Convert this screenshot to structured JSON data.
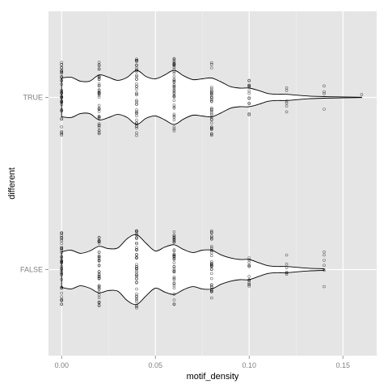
{
  "chart_data": {
    "type": "violin",
    "orientation": "horizontal",
    "xlabel": "motif_density",
    "ylabel": "different",
    "categories": [
      "TRUE",
      "FALSE"
    ],
    "x_ticks": [
      0.0,
      0.05,
      0.1,
      0.15
    ],
    "x_tick_labels": [
      "0.00",
      "0.05",
      "0.10",
      "0.15"
    ],
    "xlim": [
      -0.007,
      0.168
    ],
    "grid": true,
    "background": "#e5e5e5",
    "grid_color": "#ffffff",
    "violin_fill": "#ffffff",
    "violin_stroke": "#000000",
    "violins": [
      {
        "category": "TRUE",
        "profile": [
          [
            0.0,
            0.25
          ],
          [
            0.005,
            0.26
          ],
          [
            0.01,
            0.21
          ],
          [
            0.015,
            0.21
          ],
          [
            0.02,
            0.29
          ],
          [
            0.025,
            0.26
          ],
          [
            0.03,
            0.22
          ],
          [
            0.035,
            0.26
          ],
          [
            0.04,
            0.35
          ],
          [
            0.045,
            0.27
          ],
          [
            0.05,
            0.24
          ],
          [
            0.055,
            0.29
          ],
          [
            0.06,
            0.35
          ],
          [
            0.065,
            0.28
          ],
          [
            0.07,
            0.23
          ],
          [
            0.075,
            0.24
          ],
          [
            0.08,
            0.25
          ],
          [
            0.085,
            0.2
          ],
          [
            0.09,
            0.14
          ],
          [
            0.095,
            0.12
          ],
          [
            0.1,
            0.12
          ],
          [
            0.105,
            0.09
          ],
          [
            0.11,
            0.05
          ],
          [
            0.115,
            0.04
          ],
          [
            0.12,
            0.04
          ],
          [
            0.13,
            0.02
          ],
          [
            0.14,
            0.01
          ],
          [
            0.15,
            0.006
          ],
          [
            0.16,
            0.002
          ]
        ],
        "points": [
          {
            "x": 0.0,
            "n": 40
          },
          {
            "x": 0.02,
            "n": 40
          },
          {
            "x": 0.04,
            "n": 40
          },
          {
            "x": 0.06,
            "n": 40
          },
          {
            "x": 0.08,
            "n": 35
          },
          {
            "x": 0.1,
            "n": 14
          },
          {
            "x": 0.12,
            "n": 6
          },
          {
            "x": 0.14,
            "n": 4
          },
          {
            "x": 0.16,
            "n": 1
          }
        ]
      },
      {
        "category": "FALSE",
        "profile": [
          [
            0.0,
            0.23
          ],
          [
            0.005,
            0.25
          ],
          [
            0.01,
            0.21
          ],
          [
            0.015,
            0.24
          ],
          [
            0.02,
            0.3
          ],
          [
            0.025,
            0.27
          ],
          [
            0.03,
            0.28
          ],
          [
            0.035,
            0.4
          ],
          [
            0.04,
            0.45
          ],
          [
            0.045,
            0.34
          ],
          [
            0.05,
            0.24
          ],
          [
            0.055,
            0.29
          ],
          [
            0.06,
            0.32
          ],
          [
            0.065,
            0.26
          ],
          [
            0.07,
            0.22
          ],
          [
            0.075,
            0.25
          ],
          [
            0.08,
            0.25
          ],
          [
            0.085,
            0.19
          ],
          [
            0.09,
            0.15
          ],
          [
            0.095,
            0.13
          ],
          [
            0.1,
            0.13
          ],
          [
            0.105,
            0.09
          ],
          [
            0.11,
            0.05
          ],
          [
            0.115,
            0.04
          ],
          [
            0.12,
            0.04
          ],
          [
            0.13,
            0.02
          ],
          [
            0.14,
            0.01
          ]
        ],
        "points": [
          {
            "x": 0.0,
            "n": 40
          },
          {
            "x": 0.02,
            "n": 40
          },
          {
            "x": 0.04,
            "n": 45
          },
          {
            "x": 0.06,
            "n": 40
          },
          {
            "x": 0.08,
            "n": 35
          },
          {
            "x": 0.1,
            "n": 14
          },
          {
            "x": 0.12,
            "n": 6
          },
          {
            "x": 0.14,
            "n": 6
          }
        ]
      }
    ]
  }
}
